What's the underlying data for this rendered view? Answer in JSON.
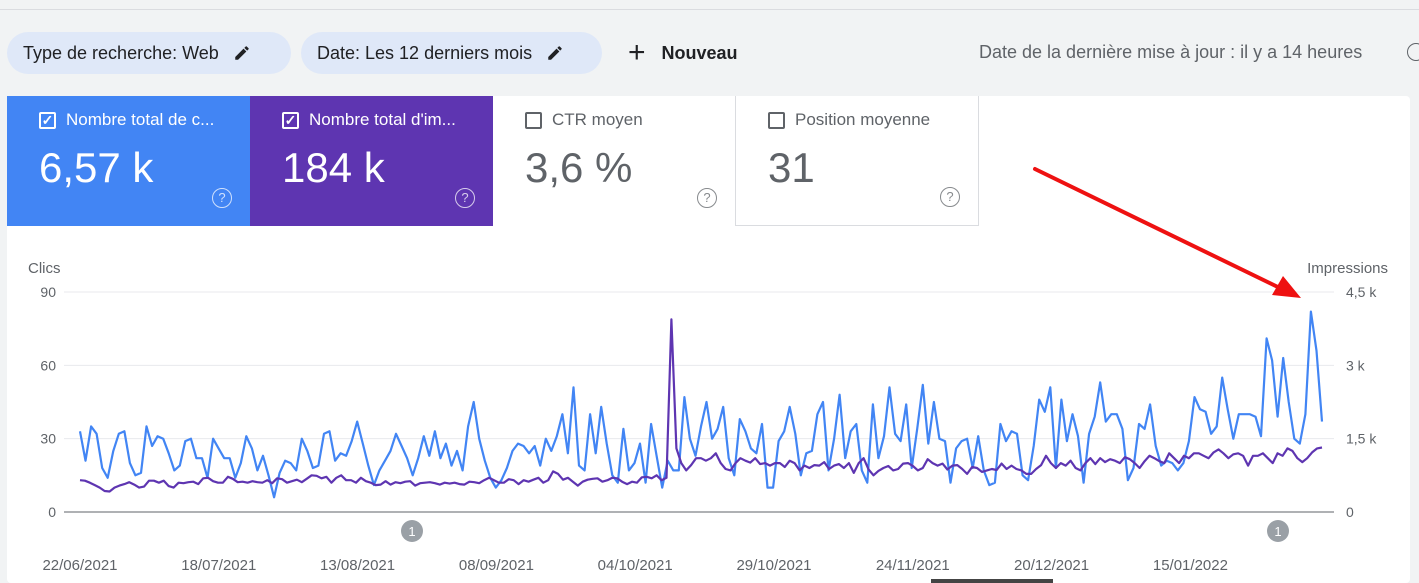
{
  "filters": {
    "search_type": "Type de recherche: Web",
    "date": "Date: Les 12 derniers mois",
    "new_label": "Nouveau",
    "last_update": "Date de la dernière mise à jour : il y a 14 heures"
  },
  "metrics": [
    {
      "label": "Nombre total de c...",
      "value": "6,57 k",
      "checked": true,
      "color": "#4285f4"
    },
    {
      "label": "Nombre total d'im...",
      "value": "184 k",
      "checked": true,
      "color": "#5e35b1"
    },
    {
      "label": "CTR moyen",
      "value": "3,6 %",
      "checked": false
    },
    {
      "label": "Position moyenne",
      "value": "31",
      "checked": false
    }
  ],
  "chart_data": {
    "type": "line",
    "left_axis": {
      "title": "Clics",
      "ticks": [
        "90",
        "60",
        "30",
        "0"
      ],
      "ylim": [
        0,
        90
      ]
    },
    "right_axis": {
      "title": "Impressions",
      "ticks": [
        "4,5 k",
        "3 k",
        "1,5 k",
        "0"
      ],
      "ylim": [
        0,
        4500
      ]
    },
    "x_tick_labels": [
      "22/06/2021",
      "18/07/2021",
      "13/08/2021",
      "08/09/2021",
      "04/10/2021",
      "29/10/2021",
      "24/11/2021",
      "20/12/2021",
      "15/01/2022"
    ],
    "annotations": [
      {
        "label": "1",
        "near": "30/07/2021"
      },
      {
        "label": "1",
        "near": "27/01/2022"
      }
    ],
    "grid": true,
    "series": [
      {
        "axis": "left",
        "color": "#4285f4",
        "values": [
          33,
          21,
          35,
          32,
          18,
          14,
          25,
          32,
          33,
          20,
          15,
          16,
          35,
          27,
          31,
          30,
          24,
          17,
          19,
          29,
          30,
          22,
          22,
          14,
          30,
          26,
          22,
          22,
          14,
          20,
          31,
          26,
          17,
          23,
          15,
          6,
          16,
          21,
          20,
          17,
          30,
          25,
          18,
          19,
          32,
          33,
          21,
          24,
          23,
          29,
          37,
          28,
          19,
          11,
          17,
          21,
          25,
          32,
          27,
          22,
          15,
          22,
          31,
          23,
          33,
          22,
          28,
          19,
          25,
          17,
          35,
          45,
          30,
          21,
          14,
          10,
          13,
          18,
          25,
          28,
          27,
          24,
          27,
          19,
          30,
          25,
          31,
          40,
          24,
          51,
          19,
          17,
          40,
          24,
          43,
          28,
          15,
          12,
          34,
          17,
          20,
          28,
          12,
          36,
          23,
          10,
          21,
          17,
          17,
          47,
          30,
          23,
          35,
          45,
          30,
          34,
          43,
          22,
          15,
          38,
          33,
          26,
          24,
          36,
          10,
          10,
          29,
          33,
          43,
          32,
          15,
          24,
          25,
          40,
          45,
          17,
          30,
          48,
          22,
          33,
          36,
          17,
          12,
          44,
          22,
          31,
          51,
          32,
          29,
          44,
          18,
          34,
          52,
          28,
          45,
          30,
          29,
          12,
          26,
          29,
          30,
          18,
          31,
          17,
          11,
          12,
          36,
          29,
          33,
          32,
          15,
          13,
          27,
          46,
          41,
          51,
          18,
          46,
          29,
          40,
          31,
          12,
          32,
          39,
          53,
          37,
          40,
          40,
          34,
          13,
          18,
          36,
          34,
          44,
          27,
          19,
          21,
          20,
          17,
          20,
          29,
          47,
          42,
          41,
          32,
          35,
          55,
          42,
          30,
          40,
          40,
          40,
          39,
          31,
          71,
          62,
          39,
          63,
          45,
          30,
          28,
          40,
          82,
          66,
          37
        ]
      },
      {
        "axis": "right",
        "color": "#5e35b1",
        "values": [
          650,
          640,
          600,
          550,
          500,
          430,
          420,
          500,
          540,
          570,
          610,
          560,
          500,
          520,
          640,
          640,
          600,
          640,
          530,
          500,
          600,
          590,
          610,
          620,
          570,
          690,
          700,
          630,
          600,
          600,
          720,
          680,
          610,
          620,
          600,
          630,
          610,
          600,
          650,
          590,
          690,
          670,
          600,
          630,
          660,
          610,
          680,
          750,
          740,
          690,
          720,
          600,
          700,
          750,
          650,
          650,
          600,
          700,
          630,
          600,
          550,
          560,
          630,
          560,
          610,
          590,
          620,
          630,
          540,
          590,
          600,
          610,
          590,
          560,
          600,
          580,
          600,
          570,
          560,
          620,
          610,
          590,
          650,
          700,
          650,
          600,
          600,
          670,
          650,
          570,
          650,
          620,
          660,
          700,
          600,
          650,
          830,
          780,
          660,
          700,
          620,
          540,
          620,
          660,
          680,
          690,
          620,
          650,
          700,
          690,
          620,
          570,
          620,
          600,
          710,
          720,
          690,
          750,
          650,
          700,
          3940,
          1300,
          1000,
          850,
          960,
          1100,
          1100,
          1050,
          1100,
          1200,
          1000,
          880,
          850,
          1000,
          1100,
          1050,
          1010,
          1100,
          980,
          1000,
          950,
          1000,
          1000,
          920,
          1050,
          1000,
          850,
          950,
          900,
          960,
          950,
          1020,
          880,
          950,
          980,
          900,
          1000,
          800,
          1000,
          1100,
          870,
          750,
          840,
          900,
          940,
          850,
          880,
          990,
          1000,
          940,
          850,
          900,
          1080,
          1000,
          950,
          990,
          870,
          950,
          960,
          880,
          780,
          920,
          900,
          820,
          850,
          880,
          860,
          990,
          880,
          950,
          880,
          850,
          780,
          780,
          880,
          960,
          1150,
          1000,
          900,
          1000,
          950,
          1050,
          900,
          850,
          1000,
          1100,
          980,
          1100,
          1020,
          1080,
          1050,
          1000,
          1120,
          1080,
          1000,
          900,
          1040,
          1150,
          1100,
          1040,
          1000,
          1200,
          1100,
          1000,
          1150,
          1100,
          1200,
          1200,
          1150,
          1100,
          1220,
          1280,
          1200,
          1100,
          1180,
          1200,
          1150,
          950,
          1150,
          1150,
          1200,
          1100,
          1000,
          1200,
          1150,
          1300,
          1250,
          1100,
          1020,
          1100,
          1220,
          1300,
          1320
        ]
      }
    ]
  }
}
